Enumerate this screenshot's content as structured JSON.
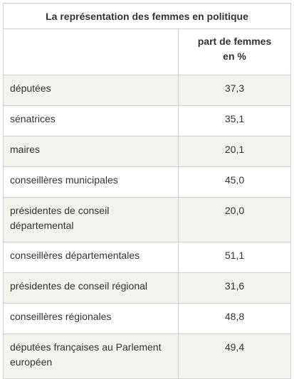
{
  "table": {
    "title": "La représentation des femmes en politique",
    "column_header_line1": "part de femmes",
    "column_header_line2": "en %",
    "rows": [
      {
        "label": "députées",
        "value": "37,3"
      },
      {
        "label": "sénatrices",
        "value": "35,1"
      },
      {
        "label": "maires",
        "value": "20,1"
      },
      {
        "label": "conseillères municipales",
        "value": "45,0"
      },
      {
        "label_line1": "présidentes de conseil",
        "label_line2": "départemental",
        "value": "20,0"
      },
      {
        "label": "conseillères départementales",
        "value": "51,1"
      },
      {
        "label": "présidentes de conseil régional",
        "value": "31,6"
      },
      {
        "label": "conseillères régionales",
        "value": "48,8"
      },
      {
        "label_line1": "députées françaises au Parlement",
        "label_line2": "européen",
        "value": "49,4"
      }
    ]
  },
  "colors": {
    "stripe": "#f4f2ec",
    "border": "#cfcfcf",
    "text": "#333333"
  }
}
